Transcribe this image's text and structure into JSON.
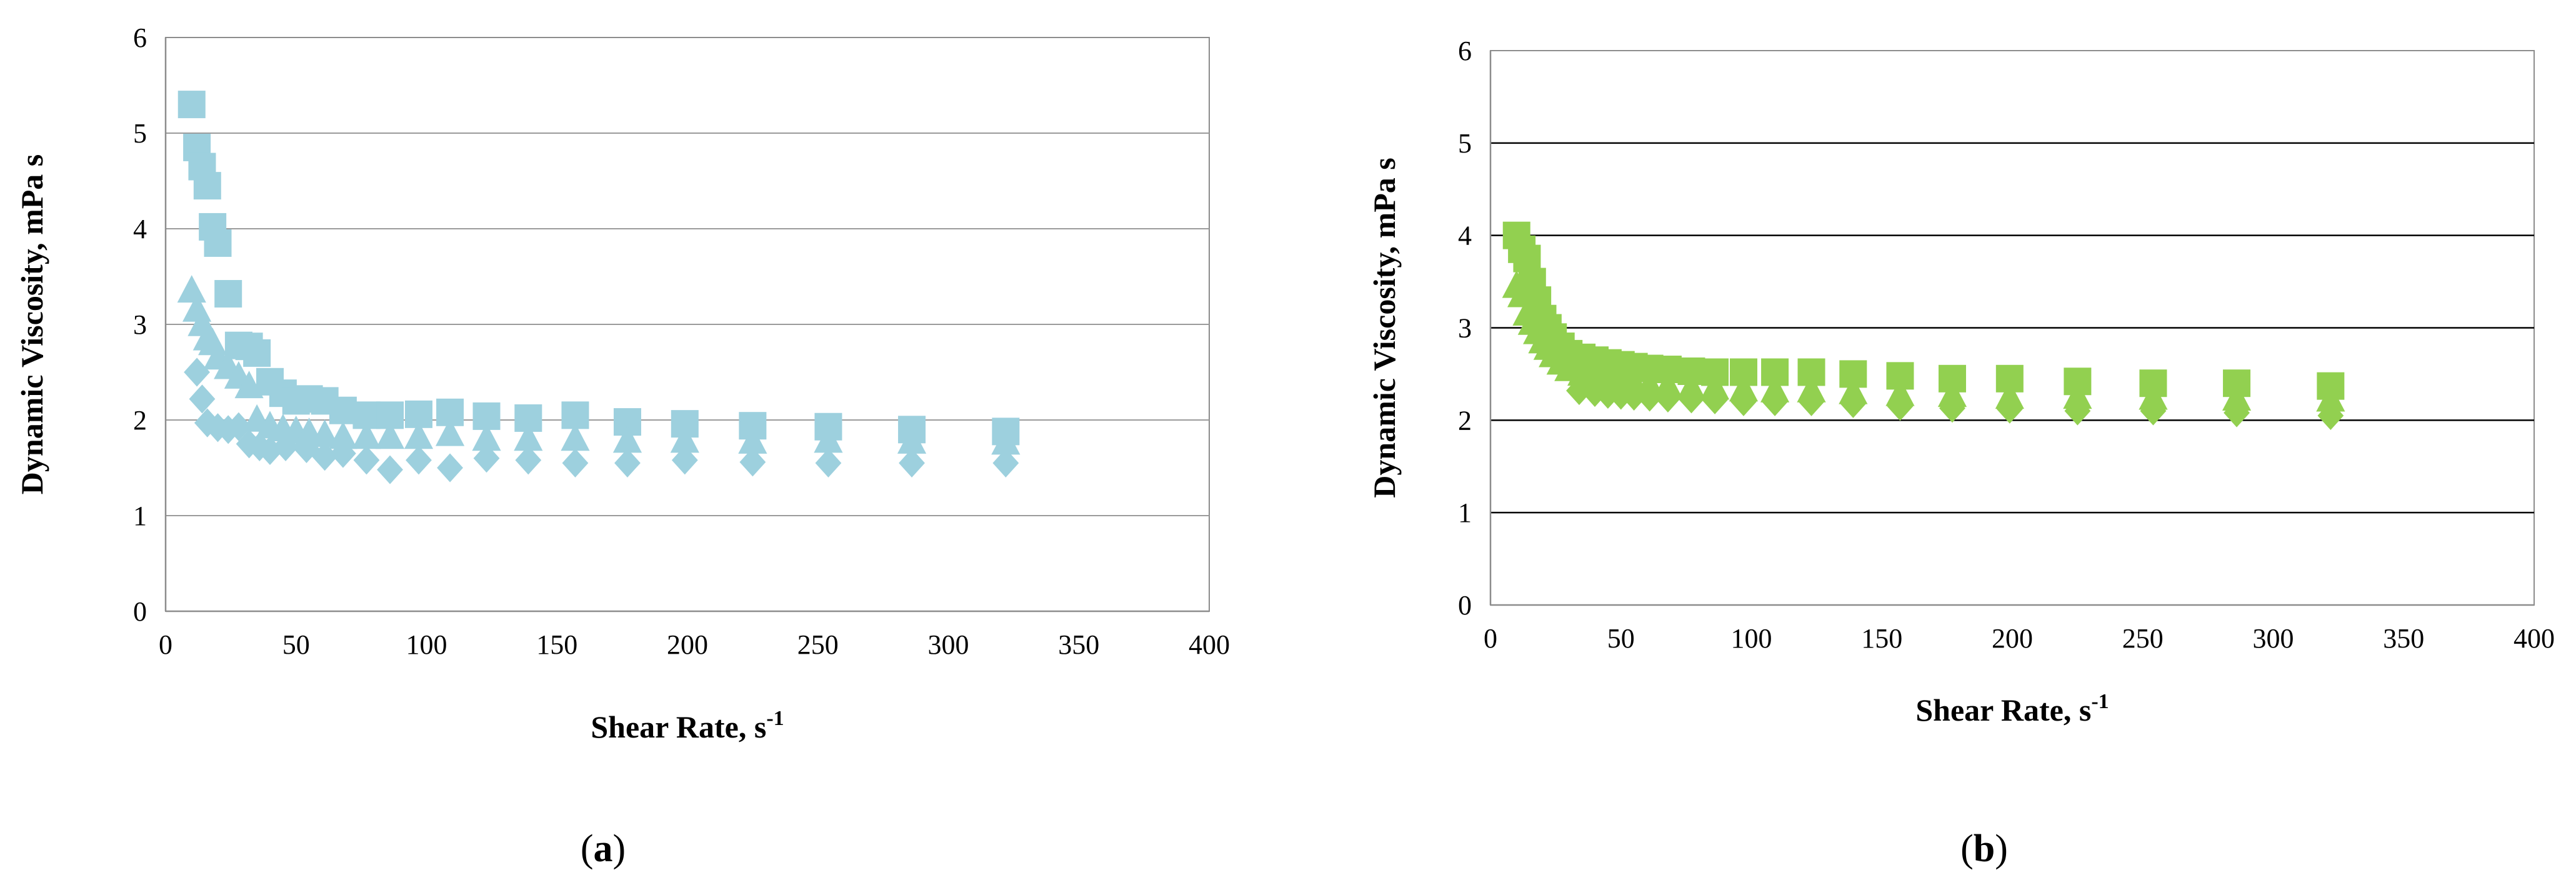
{
  "chart_data": [
    {
      "type": "scatter",
      "panel_label": "a",
      "xlabel": "Shear Rate, s",
      "xlabel_superscript": "-1",
      "ylabel": "Dynamic Viscosity, mPa s",
      "xlim": [
        0,
        400
      ],
      "ylim": [
        0,
        6
      ],
      "x_ticks": [
        "0",
        "50",
        "100",
        "150",
        "200",
        "250",
        "300",
        "350",
        "400"
      ],
      "y_ticks": [
        "0",
        "1",
        "2",
        "3",
        "4",
        "5",
        "6"
      ],
      "grid": "horizontal",
      "color": "#9dd0de",
      "series": [
        {
          "marker": "square",
          "points": [
            [
              10,
              5.3
            ],
            [
              12,
              4.85
            ],
            [
              14,
              4.65
            ],
            [
              16,
              4.45
            ],
            [
              18,
              4.02
            ],
            [
              20,
              3.85
            ],
            [
              24,
              3.32
            ],
            [
              28,
              2.78
            ],
            [
              32,
              2.77
            ],
            [
              35,
              2.7
            ],
            [
              40,
              2.4
            ],
            [
              45,
              2.28
            ],
            [
              50,
              2.2
            ],
            [
              55,
              2.22
            ],
            [
              61,
              2.2
            ],
            [
              68,
              2.1
            ],
            [
              77,
              2.05
            ],
            [
              86,
              2.05
            ],
            [
              97,
              2.06
            ],
            [
              109,
              2.08
            ],
            [
              123,
              2.04
            ],
            [
              139,
              2.02
            ],
            [
              157,
              2.05
            ],
            [
              177,
              1.98
            ],
            [
              199,
              1.96
            ],
            [
              225,
              1.94
            ],
            [
              254,
              1.93
            ],
            [
              286,
              1.9
            ],
            [
              322,
              1.88
            ]
          ]
        },
        {
          "marker": "triangle",
          "points": [
            [
              10,
              3.35
            ],
            [
              12,
              3.15
            ],
            [
              14,
              3.0
            ],
            [
              16,
              2.85
            ],
            [
              18,
              2.8
            ],
            [
              20,
              2.65
            ],
            [
              24,
              2.55
            ],
            [
              28,
              2.45
            ],
            [
              32,
              2.35
            ],
            [
              35,
              2.0
            ],
            [
              40,
              1.93
            ],
            [
              45,
              1.9
            ],
            [
              50,
              1.88
            ],
            [
              55,
              1.86
            ],
            [
              61,
              1.84
            ],
            [
              68,
              1.82
            ],
            [
              77,
              1.82
            ],
            [
              86,
              1.82
            ],
            [
              97,
              1.82
            ],
            [
              109,
              1.85
            ],
            [
              123,
              1.8
            ],
            [
              139,
              1.8
            ],
            [
              157,
              1.8
            ],
            [
              177,
              1.78
            ],
            [
              199,
              1.78
            ],
            [
              225,
              1.77
            ],
            [
              254,
              1.78
            ],
            [
              286,
              1.77
            ],
            [
              322,
              1.76
            ]
          ]
        },
        {
          "marker": "diamond",
          "points": [
            [
              12,
              2.5
            ],
            [
              14,
              2.22
            ],
            [
              16,
              1.97
            ],
            [
              20,
              1.92
            ],
            [
              24,
              1.9
            ],
            [
              28,
              1.93
            ],
            [
              32,
              1.75
            ],
            [
              36,
              1.72
            ],
            [
              40,
              1.68
            ],
            [
              46,
              1.72
            ],
            [
              54,
              1.7
            ],
            [
              61,
              1.62
            ],
            [
              68,
              1.65
            ],
            [
              77,
              1.58
            ],
            [
              86,
              1.48
            ],
            [
              97,
              1.58
            ],
            [
              109,
              1.5
            ],
            [
              123,
              1.6
            ],
            [
              139,
              1.58
            ],
            [
              157,
              1.55
            ],
            [
              177,
              1.55
            ],
            [
              199,
              1.58
            ],
            [
              225,
              1.56
            ],
            [
              254,
              1.55
            ],
            [
              286,
              1.55
            ],
            [
              322,
              1.55
            ]
          ]
        }
      ]
    },
    {
      "type": "scatter",
      "panel_label": "b",
      "xlabel": "Shear Rate, s",
      "xlabel_superscript": "-1",
      "ylabel": "Dynamic Viscosity, mPa s",
      "xlim": [
        0,
        400
      ],
      "ylim": [
        0,
        6
      ],
      "x_ticks": [
        "0",
        "50",
        "100",
        "150",
        "200",
        "250",
        "300",
        "350",
        "400"
      ],
      "y_ticks": [
        "0",
        "1",
        "2",
        "3",
        "4",
        "5",
        "6"
      ],
      "grid": "horizontal",
      "color": "#92d050",
      "series": [
        {
          "marker": "square",
          "points": [
            [
              10,
              4.0
            ],
            [
              12,
              3.85
            ],
            [
              14,
              3.75
            ],
            [
              16,
              3.5
            ],
            [
              18,
              3.3
            ],
            [
              20,
              3.1
            ],
            [
              22,
              3.0
            ],
            [
              24,
              2.9
            ],
            [
              27,
              2.8
            ],
            [
              30,
              2.72
            ],
            [
              35,
              2.68
            ],
            [
              40,
              2.65
            ],
            [
              45,
              2.62
            ],
            [
              50,
              2.6
            ],
            [
              55,
              2.58
            ],
            [
              61,
              2.56
            ],
            [
              68,
              2.55
            ],
            [
              77,
              2.53
            ],
            [
              86,
              2.52
            ],
            [
              97,
              2.52
            ],
            [
              109,
              2.52
            ],
            [
              123,
              2.52
            ],
            [
              139,
              2.5
            ],
            [
              157,
              2.48
            ],
            [
              177,
              2.45
            ],
            [
              199,
              2.45
            ],
            [
              225,
              2.42
            ],
            [
              254,
              2.4
            ],
            [
              286,
              2.4
            ],
            [
              322,
              2.37
            ]
          ]
        },
        {
          "marker": "triangle",
          "points": [
            [
              10,
              3.45
            ],
            [
              12,
              3.35
            ],
            [
              14,
              3.15
            ],
            [
              16,
              3.05
            ],
            [
              18,
              2.95
            ],
            [
              20,
              2.85
            ],
            [
              22,
              2.78
            ],
            [
              24,
              2.7
            ],
            [
              27,
              2.62
            ],
            [
              30,
              2.55
            ],
            [
              35,
              2.5
            ],
            [
              40,
              2.47
            ],
            [
              45,
              2.45
            ],
            [
              50,
              2.42
            ],
            [
              55,
              2.4
            ],
            [
              61,
              2.38
            ],
            [
              68,
              2.37
            ],
            [
              77,
              2.35
            ],
            [
              86,
              2.35
            ],
            [
              97,
              2.33
            ],
            [
              109,
              2.32
            ],
            [
              123,
              2.32
            ],
            [
              139,
              2.3
            ],
            [
              157,
              2.28
            ],
            [
              177,
              2.27
            ],
            [
              199,
              2.25
            ],
            [
              225,
              2.25
            ],
            [
              254,
              2.24
            ],
            [
              286,
              2.23
            ],
            [
              322,
              2.22
            ]
          ]
        },
        {
          "marker": "diamond",
          "points": [
            [
              34,
              2.32
            ],
            [
              40,
              2.3
            ],
            [
              45,
              2.28
            ],
            [
              50,
              2.27
            ],
            [
              55,
              2.26
            ],
            [
              61,
              2.25
            ],
            [
              68,
              2.24
            ],
            [
              77,
              2.23
            ],
            [
              86,
              2.22
            ],
            [
              97,
              2.2
            ],
            [
              109,
              2.2
            ],
            [
              123,
              2.2
            ],
            [
              139,
              2.18
            ],
            [
              157,
              2.15
            ],
            [
              177,
              2.13
            ],
            [
              199,
              2.12
            ],
            [
              225,
              2.1
            ],
            [
              254,
              2.1
            ],
            [
              286,
              2.08
            ],
            [
              322,
              2.05
            ]
          ]
        }
      ]
    }
  ]
}
